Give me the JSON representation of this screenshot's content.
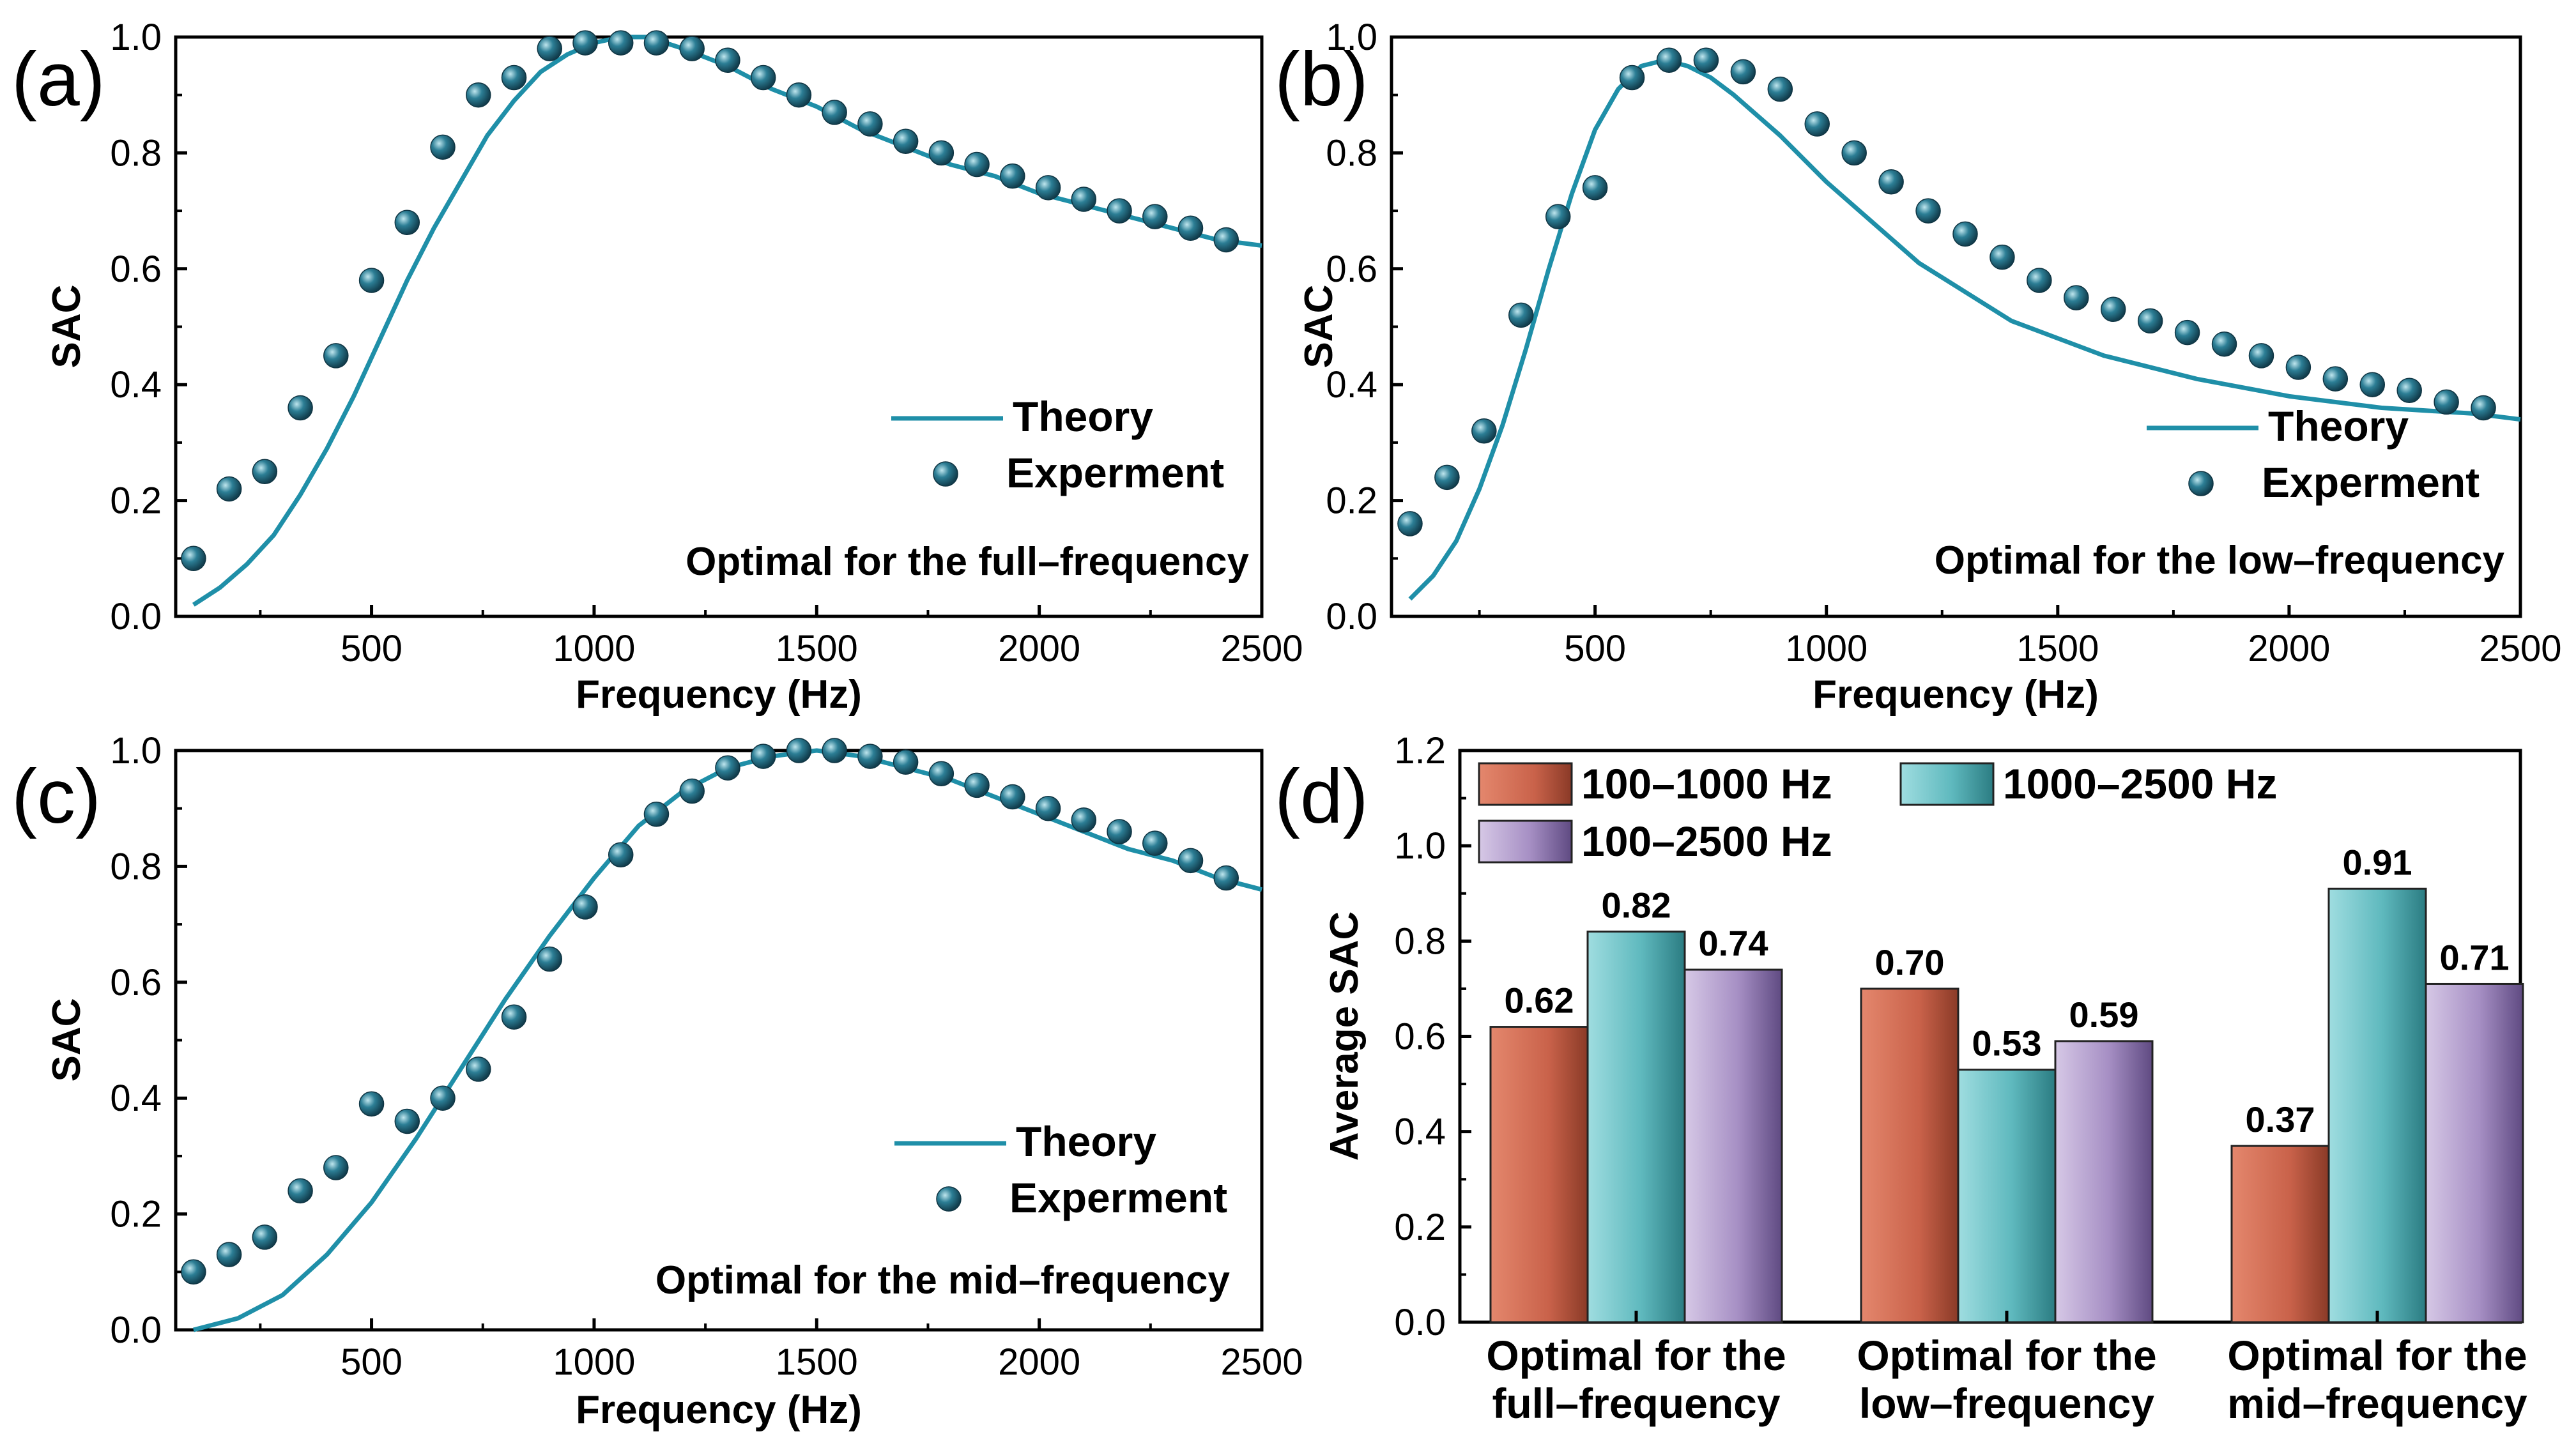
{
  "colors": {
    "theory": "#1f8fa8",
    "experiment": "#1e5f74",
    "bar_low": "#c9624a",
    "bar_high": "#5fb9be",
    "bar_full": "#a68fc4",
    "axis": "#000000"
  },
  "chart_data": [
    {
      "panel": "(a)",
      "type": "line",
      "xlabel": "Frequency (Hz)",
      "ylabel": "SAC",
      "xlim": [
        60,
        2500
      ],
      "ylim": [
        0.0,
        1.0
      ],
      "xticks": [
        "500",
        "1000",
        "1500",
        "2000",
        "2500"
      ],
      "yticks": [
        "0.0",
        "0.2",
        "0.4",
        "0.6",
        "0.8",
        "1.0"
      ],
      "annotation": "Optimal for the full–frequency",
      "legend_position": "right",
      "series": [
        {
          "name": "Theory",
          "style": "line",
          "x": [
            100,
            160,
            220,
            280,
            340,
            400,
            460,
            520,
            580,
            640,
            700,
            760,
            820,
            880,
            940,
            1000,
            1060,
            1120,
            1200,
            1300,
            1400,
            1500,
            1600,
            1700,
            1800,
            1900,
            2000,
            2100,
            2200,
            2300,
            2400,
            2500
          ],
          "y": [
            0.02,
            0.05,
            0.09,
            0.14,
            0.21,
            0.29,
            0.38,
            0.48,
            0.58,
            0.67,
            0.75,
            0.83,
            0.89,
            0.94,
            0.97,
            0.99,
            1.0,
            1.0,
            0.98,
            0.95,
            0.91,
            0.88,
            0.84,
            0.81,
            0.78,
            0.76,
            0.73,
            0.71,
            0.69,
            0.67,
            0.65,
            0.64
          ]
        },
        {
          "name": "Experment",
          "style": "scatter",
          "x": [
            100,
            180,
            260,
            340,
            420,
            500,
            580,
            660,
            740,
            820,
            900,
            980,
            1060,
            1140,
            1220,
            1300,
            1380,
            1460,
            1540,
            1620,
            1700,
            1780,
            1860,
            1940,
            2020,
            2100,
            2180,
            2260,
            2340,
            2420
          ],
          "y": [
            0.1,
            0.22,
            0.25,
            0.36,
            0.45,
            0.58,
            0.68,
            0.81,
            0.9,
            0.93,
            0.98,
            0.99,
            0.99,
            0.99,
            0.98,
            0.96,
            0.93,
            0.9,
            0.87,
            0.85,
            0.82,
            0.8,
            0.78,
            0.76,
            0.74,
            0.72,
            0.7,
            0.69,
            0.67,
            0.65
          ]
        }
      ]
    },
    {
      "panel": "(b)",
      "type": "line",
      "xlabel": "Frequency (Hz)",
      "ylabel": "SAC",
      "xlim": [
        60,
        2500
      ],
      "ylim": [
        0.0,
        1.0
      ],
      "xticks": [
        "500",
        "1000",
        "1500",
        "2000",
        "2500"
      ],
      "yticks": [
        "0.0",
        "0.2",
        "0.4",
        "0.6",
        "0.8",
        "1.0"
      ],
      "annotation": "Optimal for the low–frequency",
      "legend_position": "right",
      "series": [
        {
          "name": "Theory",
          "style": "line",
          "x": [
            100,
            150,
            200,
            250,
            300,
            350,
            400,
            450,
            500,
            550,
            600,
            650,
            700,
            750,
            800,
            900,
            1000,
            1100,
            1200,
            1300,
            1400,
            1500,
            1600,
            1800,
            2000,
            2200,
            2400,
            2500
          ],
          "y": [
            0.03,
            0.07,
            0.13,
            0.22,
            0.33,
            0.46,
            0.6,
            0.73,
            0.84,
            0.91,
            0.95,
            0.96,
            0.95,
            0.93,
            0.9,
            0.83,
            0.75,
            0.68,
            0.61,
            0.56,
            0.51,
            0.48,
            0.45,
            0.41,
            0.38,
            0.36,
            0.35,
            0.34
          ]
        },
        {
          "name": "Experment",
          "style": "scatter",
          "x": [
            100,
            180,
            260,
            340,
            420,
            500,
            580,
            660,
            740,
            820,
            900,
            980,
            1060,
            1140,
            1220,
            1300,
            1380,
            1460,
            1540,
            1620,
            1700,
            1780,
            1860,
            1940,
            2020,
            2100,
            2180,
            2260,
            2340,
            2420
          ],
          "y": [
            0.16,
            0.24,
            0.32,
            0.52,
            0.69,
            0.74,
            0.93,
            0.96,
            0.96,
            0.94,
            0.91,
            0.85,
            0.8,
            0.75,
            0.7,
            0.66,
            0.62,
            0.58,
            0.55,
            0.53,
            0.51,
            0.49,
            0.47,
            0.45,
            0.43,
            0.41,
            0.4,
            0.39,
            0.37,
            0.36
          ]
        }
      ]
    },
    {
      "panel": "(c)",
      "type": "line",
      "xlabel": "Frequency (Hz)",
      "ylabel": "SAC",
      "xlim": [
        60,
        2500
      ],
      "ylim": [
        0.0,
        1.0
      ],
      "xticks": [
        "500",
        "1000",
        "1500",
        "2000",
        "2500"
      ],
      "yticks": [
        "0.0",
        "0.2",
        "0.4",
        "0.6",
        "0.8",
        "1.0"
      ],
      "annotation": "Optimal for the mid–frequency",
      "legend_position": "right",
      "series": [
        {
          "name": "Theory",
          "style": "line",
          "x": [
            100,
            200,
            300,
            400,
            500,
            600,
            700,
            800,
            900,
            1000,
            1100,
            1200,
            1300,
            1400,
            1500,
            1600,
            1700,
            1800,
            1900,
            2000,
            2100,
            2200,
            2300,
            2400,
            2500
          ],
          "y": [
            0.0,
            0.02,
            0.06,
            0.13,
            0.22,
            0.33,
            0.45,
            0.57,
            0.68,
            0.78,
            0.87,
            0.93,
            0.97,
            0.99,
            1.0,
            0.99,
            0.97,
            0.95,
            0.92,
            0.89,
            0.86,
            0.83,
            0.81,
            0.78,
            0.76
          ]
        },
        {
          "name": "Experment",
          "style": "scatter",
          "x": [
            100,
            180,
            260,
            340,
            420,
            500,
            580,
            660,
            740,
            820,
            900,
            980,
            1060,
            1140,
            1220,
            1300,
            1380,
            1460,
            1540,
            1620,
            1700,
            1780,
            1860,
            1940,
            2020,
            2100,
            2180,
            2260,
            2340,
            2420
          ],
          "y": [
            0.1,
            0.13,
            0.16,
            0.24,
            0.28,
            0.39,
            0.36,
            0.4,
            0.45,
            0.54,
            0.64,
            0.73,
            0.82,
            0.89,
            0.93,
            0.97,
            0.99,
            1.0,
            1.0,
            0.99,
            0.98,
            0.96,
            0.94,
            0.92,
            0.9,
            0.88,
            0.86,
            0.84,
            0.81,
            0.78
          ]
        }
      ]
    },
    {
      "panel": "(d)",
      "type": "bar",
      "ylabel": "Average SAC",
      "ylim": [
        0.0,
        1.2
      ],
      "yticks": [
        "0.0",
        "0.2",
        "0.4",
        "0.6",
        "0.8",
        "1.0",
        "1.2"
      ],
      "categories": [
        [
          "Optimal for the",
          "full–frequency"
        ],
        [
          "Optimal for the",
          "low–frequency"
        ],
        [
          "Optimal for the",
          "mid–frequency"
        ]
      ],
      "legend_position": "top-left",
      "series": [
        {
          "name": "100–1000 Hz",
          "values": [
            0.62,
            0.7,
            0.37
          ],
          "labels": [
            "0.62",
            "0.70",
            "0.37"
          ]
        },
        {
          "name": "1000–2500 Hz",
          "values": [
            0.82,
            0.53,
            0.91
          ],
          "labels": [
            "0.82",
            "0.53",
            "0.91"
          ]
        },
        {
          "name": "100–2500 Hz",
          "values": [
            0.74,
            0.59,
            0.71
          ],
          "labels": [
            "0.74",
            "0.59",
            "0.71"
          ]
        }
      ]
    }
  ]
}
